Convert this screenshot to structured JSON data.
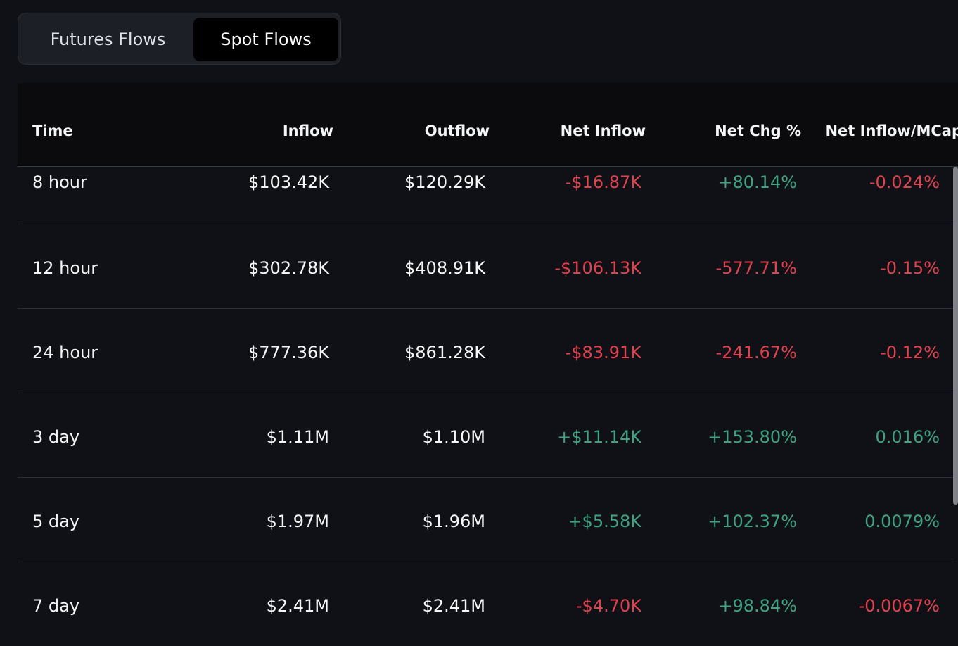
{
  "tabs": [
    {
      "label": "Futures Flows",
      "active": false
    },
    {
      "label": "Spot Flows",
      "active": true
    }
  ],
  "table": {
    "headers": [
      "Time",
      "Inflow",
      "Outflow",
      "Net Inflow",
      "Net Chg %",
      "Net Inflow/MCap"
    ],
    "rows": [
      {
        "time": "8 hour",
        "inflow": "$103.42K",
        "outflow": "$120.29K",
        "net_inflow": "-$16.87K",
        "net_chg": "+80.14%",
        "mcap": "-0.024%"
      },
      {
        "time": "12 hour",
        "inflow": "$302.78K",
        "outflow": "$408.91K",
        "net_inflow": "-$106.13K",
        "net_chg": "-577.71%",
        "mcap": "-0.15%"
      },
      {
        "time": "24 hour",
        "inflow": "$777.36K",
        "outflow": "$861.28K",
        "net_inflow": "-$83.91K",
        "net_chg": "-241.67%",
        "mcap": "-0.12%"
      },
      {
        "time": "3 day",
        "inflow": "$1.11M",
        "outflow": "$1.10M",
        "net_inflow": "+$11.14K",
        "net_chg": "+153.80%",
        "mcap": "0.016%"
      },
      {
        "time": "5 day",
        "inflow": "$1.97M",
        "outflow": "$1.96M",
        "net_inflow": "+$5.58K",
        "net_chg": "+102.37%",
        "mcap": "0.0079%"
      },
      {
        "time": "7 day",
        "inflow": "$2.41M",
        "outflow": "$2.41M",
        "net_inflow": "-$4.70K",
        "net_chg": "+98.84%",
        "mcap": "-0.0067%"
      }
    ]
  },
  "colors": {
    "background": "#101116",
    "header_background": "#0b0b0e",
    "positive": "#3ea380",
    "negative": "#e2424e",
    "text": "#f4f5f7"
  }
}
